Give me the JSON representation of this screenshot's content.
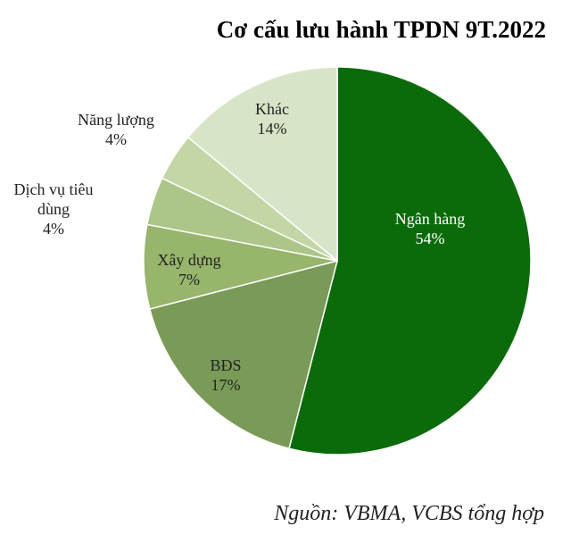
{
  "chart_data": {
    "type": "pie",
    "title": "Cơ cấu lưu hành TPDN 9T.2022",
    "source": "Nguồn: VBMA, VCBS tổng hợp",
    "categories": [
      "Ngân hàng",
      "BĐS",
      "Xây dựng",
      "Dịch vụ tiêu dùng",
      "Năng lượng",
      "Khác"
    ],
    "values": [
      54,
      17,
      7,
      4,
      4,
      14
    ],
    "value_labels": [
      "54%",
      "17%",
      "7%",
      "4%",
      "4%",
      "14%"
    ],
    "colors": [
      "#0b6b0b",
      "#7a9a57",
      "#97b56b",
      "#abc688",
      "#c3d7a6",
      "#d8e4c8"
    ]
  }
}
